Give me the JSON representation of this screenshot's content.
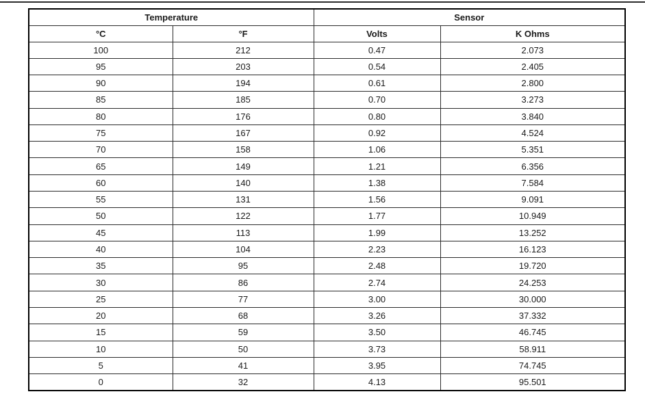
{
  "document": {
    "top_rule_color": "#2b2b2b"
  },
  "table": {
    "group_headers": [
      {
        "label": "Temperature",
        "colspan": 2
      },
      {
        "label": "Sensor",
        "colspan": 2
      }
    ],
    "column_headers": [
      "°C",
      "°F",
      "Volts",
      "K Ohms"
    ],
    "rows": [
      [
        "100",
        "212",
        "0.47",
        "2.073"
      ],
      [
        "95",
        "203",
        "0.54",
        "2.405"
      ],
      [
        "90",
        "194",
        "0.61",
        "2.800"
      ],
      [
        "85",
        "185",
        "0.70",
        "3.273"
      ],
      [
        "80",
        "176",
        "0.80",
        "3.840"
      ],
      [
        "75",
        "167",
        "0.92",
        "4.524"
      ],
      [
        "70",
        "158",
        "1.06",
        "5.351"
      ],
      [
        "65",
        "149",
        "1.21",
        "6.356"
      ],
      [
        "60",
        "140",
        "1.38",
        "7.584"
      ],
      [
        "55",
        "131",
        "1.56",
        "9.091"
      ],
      [
        "50",
        "122",
        "1.77",
        "10.949"
      ],
      [
        "45",
        "113",
        "1.99",
        "13.252"
      ],
      [
        "40",
        "104",
        "2.23",
        "16.123"
      ],
      [
        "35",
        "95",
        "2.48",
        "19.720"
      ],
      [
        "30",
        "86",
        "2.74",
        "24.253"
      ],
      [
        "25",
        "77",
        "3.00",
        "30.000"
      ],
      [
        "20",
        "68",
        "3.26",
        "37.332"
      ],
      [
        "15",
        "59",
        "3.50",
        "46.745"
      ],
      [
        "10",
        "50",
        "3.73",
        "58.911"
      ],
      [
        "5",
        "41",
        "3.95",
        "74.745"
      ],
      [
        "0",
        "32",
        "4.13",
        "95.501"
      ]
    ]
  }
}
